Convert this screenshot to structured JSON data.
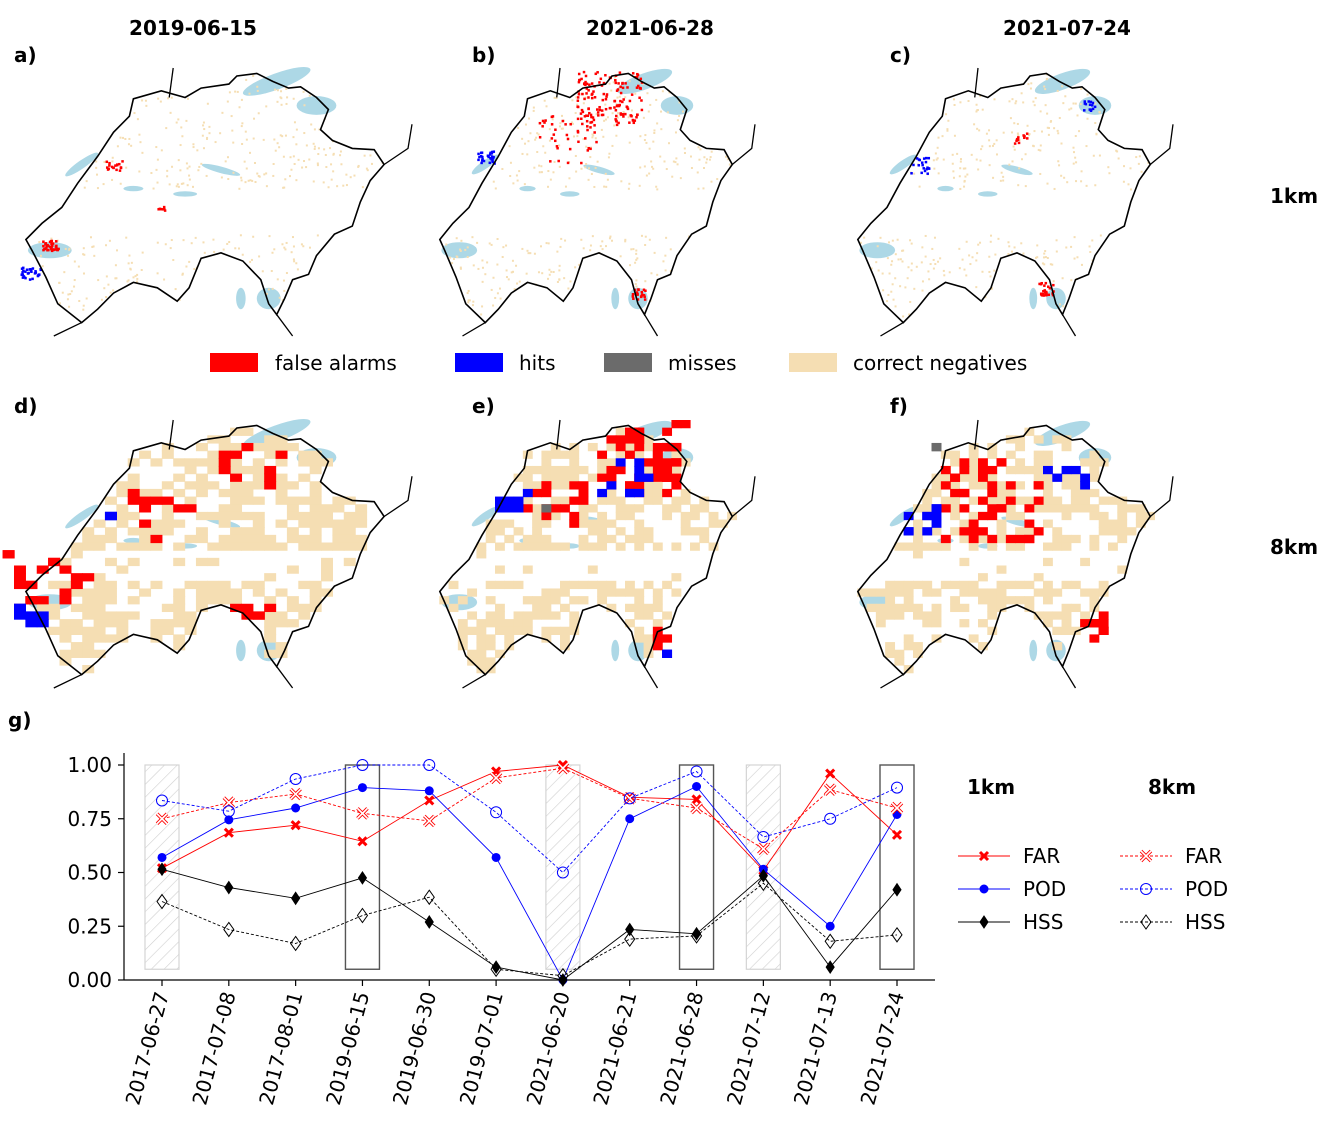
{
  "panels": {
    "top_titles": [
      "2019-06-15",
      "2021-06-28",
      "2021-07-24"
    ],
    "letters": [
      "a)",
      "b)",
      "c)",
      "d)",
      "e)",
      "f)"
    ],
    "row_labels": [
      "1km",
      "8km"
    ]
  },
  "legend_maps": {
    "items": [
      {
        "label": "false alarms",
        "color": "#ff0000"
      },
      {
        "label": "hits",
        "color": "#0000ff"
      },
      {
        "label": "misses",
        "color": "#6b6b6b"
      },
      {
        "label": "correct negatives",
        "color": "#f5deb3"
      }
    ]
  },
  "colors": {
    "false_alarm": "#ff0000",
    "hit": "#0000ff",
    "miss": "#6b6b6b",
    "correct_negative": "#f5deb3",
    "lake": "#add8e6",
    "border": "#000000"
  },
  "chart_data": {
    "type": "line",
    "panel_letter": "g)",
    "categories": [
      "2017-06-27",
      "2017-07-08",
      "2017-08-01",
      "2019-06-15",
      "2019-06-30",
      "2019-07-01",
      "2021-06-20",
      "2021-06-21",
      "2021-06-28",
      "2021-07-12",
      "2021-07-13",
      "2021-07-24"
    ],
    "ylim": [
      0,
      1.05
    ],
    "yticks": [
      "0.00",
      "0.25",
      "0.50",
      "0.75",
      "1.00"
    ],
    "xlabel": "",
    "ylabel": "",
    "legend_headers": [
      "1km",
      "8km"
    ],
    "series": [
      {
        "name": "FAR",
        "resolution": "1km",
        "color": "#ff0000",
        "marker": "x-filled",
        "dashed": false,
        "values": [
          0.52,
          0.685,
          0.72,
          0.645,
          0.835,
          0.97,
          1.0,
          0.85,
          0.84,
          0.51,
          0.96,
          0.675
        ]
      },
      {
        "name": "POD",
        "resolution": "1km",
        "color": "#0000ff",
        "marker": "circle-filled",
        "dashed": false,
        "values": [
          0.57,
          0.745,
          0.8,
          0.895,
          0.88,
          0.57,
          0.0,
          0.75,
          0.9,
          0.515,
          0.25,
          0.77
        ]
      },
      {
        "name": "HSS",
        "resolution": "1km",
        "color": "#000000",
        "marker": "diamond-filled",
        "dashed": false,
        "values": [
          0.515,
          0.43,
          0.38,
          0.475,
          0.27,
          0.06,
          0.0,
          0.235,
          0.215,
          0.485,
          0.06,
          0.42
        ]
      },
      {
        "name": "FAR",
        "resolution": "8km",
        "color": "#ff0000",
        "marker": "x-open",
        "dashed": true,
        "values": [
          0.75,
          0.825,
          0.865,
          0.775,
          0.74,
          0.94,
          0.985,
          0.845,
          0.8,
          0.61,
          0.885,
          0.8
        ]
      },
      {
        "name": "POD",
        "resolution": "8km",
        "color": "#0000ff",
        "marker": "circle-open",
        "dashed": true,
        "values": [
          0.835,
          0.785,
          0.935,
          1.0,
          1.0,
          0.78,
          0.5,
          0.845,
          0.97,
          0.665,
          0.75,
          0.895
        ]
      },
      {
        "name": "HSS",
        "resolution": "8km",
        "color": "#000000",
        "marker": "diamond-open",
        "dashed": true,
        "values": [
          0.365,
          0.235,
          0.17,
          0.3,
          0.385,
          0.05,
          0.02,
          0.19,
          0.205,
          0.45,
          0.18,
          0.21
        ]
      }
    ],
    "highlight_boxes": [
      {
        "category": "2019-06-15",
        "style": "outline"
      },
      {
        "category": "2021-06-28",
        "style": "outline"
      },
      {
        "category": "2021-07-24",
        "style": "outline"
      },
      {
        "category": "2017-06-27",
        "style": "hatched"
      },
      {
        "category": "2021-06-20",
        "style": "hatched"
      },
      {
        "category": "2021-07-12",
        "style": "hatched"
      }
    ],
    "highlight_box_range": [
      0.05,
      1.0
    ]
  }
}
